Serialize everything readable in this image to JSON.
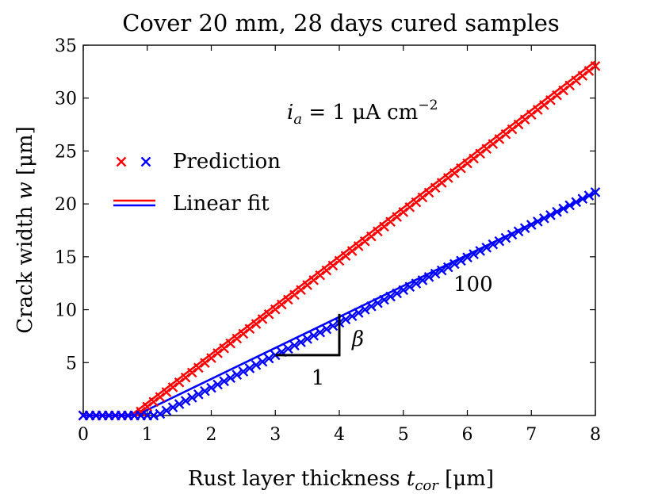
{
  "chart_data": {
    "type": "scatter",
    "title": "Cover 20 mm, 28 days cured samples",
    "xlabel": {
      "main": "Rust layer thickness ",
      "var": "t",
      "sub": "cor",
      "unit": " [μm]"
    },
    "ylabel": {
      "main": "Crack width ",
      "var": "w",
      "unit": " [μm]"
    },
    "xlim": [
      0,
      8
    ],
    "ylim": [
      0,
      35
    ],
    "xticks": [
      0,
      1,
      2,
      3,
      4,
      5,
      6,
      7,
      8
    ],
    "yticks": [
      5,
      10,
      15,
      20,
      25,
      30,
      35
    ],
    "grid": false,
    "legend": {
      "position": "upper-left",
      "entries": [
        {
          "label": "Prediction",
          "kind": "markers"
        },
        {
          "label": "Linear fit",
          "kind": "lines"
        }
      ]
    },
    "annotation": {
      "current_var": "i",
      "current_sub": "a",
      "current_eq": " = 1 μA cm",
      "current_exp": "−2"
    },
    "slope_triangle": {
      "run_label": "1",
      "rise_label": "β",
      "slope_value_label": "100",
      "x0": 3.0,
      "x1": 4.0,
      "y0": 5.7,
      "y1": 9.6
    },
    "series": [
      {
        "name": "red",
        "color": "#ff0000",
        "markers": {
          "x_start": 0.0,
          "x_end": 8.0,
          "step": 0.1,
          "onset": 0.82,
          "slope": 4.6
        },
        "fit": {
          "x0": 0.74,
          "x1": 8.0,
          "slope": 4.61
        }
      },
      {
        "name": "blue",
        "color": "#0000ff",
        "markers": {
          "x_start": 0.0,
          "x_end": 8.0,
          "step": 0.1,
          "onset": 1.15,
          "slope": 3.08
        },
        "fit": {
          "x0": 0.82,
          "x1": 8.0,
          "slope": 2.93
        }
      }
    ]
  }
}
